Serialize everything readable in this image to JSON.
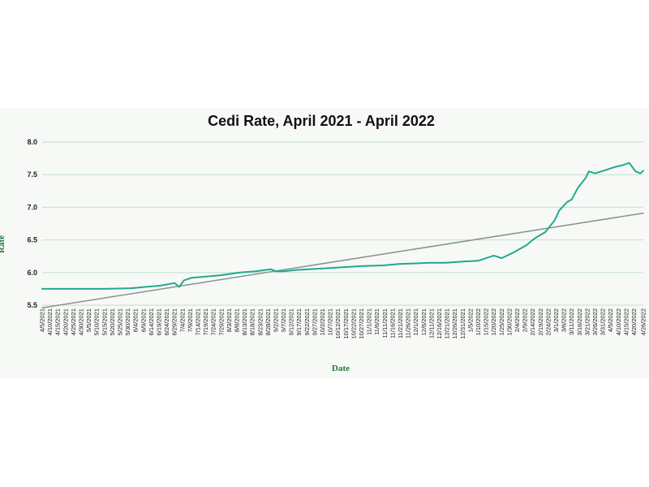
{
  "chart_data": {
    "type": "line",
    "title": "Cedi Rate, April 2021 - April 2022",
    "xlabel": "Date",
    "ylabel": "Rate",
    "ylim": [
      5.5,
      8.0
    ],
    "yticks": [
      "5.5",
      "6.0",
      "6.5",
      "7.0",
      "7.5",
      "8.0"
    ],
    "grid": true,
    "legend": "none",
    "colors": {
      "series": "#20a98f",
      "trend": "#8a938c",
      "grid": "#bfe0cf"
    },
    "x_tick_labels": [
      "4/5/2021",
      "4/10/2021",
      "4/15/2021",
      "4/20/2021",
      "4/25/2021",
      "4/30/2021",
      "5/5/2021",
      "5/10/2021",
      "5/15/2021",
      "5/20/2021",
      "5/25/2021",
      "5/30/2021",
      "6/4/2021",
      "6/9/2021",
      "6/14/2021",
      "6/19/2021",
      "6/24/2021",
      "6/29/2021",
      "7/4/2021",
      "7/9/2021",
      "7/14/2021",
      "7/19/2021",
      "7/24/2021",
      "7/29/2021",
      "8/3/2021",
      "8/8/2021",
      "8/13/2021",
      "8/18/2021",
      "8/23/2021",
      "8/28/2021",
      "9/2/2021",
      "9/7/2021",
      "9/12/2021",
      "9/17/2021",
      "9/22/2021",
      "9/27/2021",
      "10/2/2021",
      "10/7/2021",
      "10/12/2021",
      "10/17/2021",
      "10/22/2021",
      "10/27/2021",
      "11/1/2021",
      "11/6/2021",
      "11/11/2021",
      "11/16/2021",
      "11/21/2021",
      "11/26/2021",
      "12/1/2021",
      "12/6/2021",
      "12/11/2021",
      "12/16/2021",
      "12/21/2021",
      "12/26/2021",
      "12/31/2021",
      "1/5/2022",
      "1/10/2022",
      "1/15/2022",
      "1/20/2022",
      "1/25/2022",
      "1/30/2022",
      "2/4/2022",
      "2/9/2022",
      "2/14/2022",
      "2/19/2022",
      "2/24/2022",
      "3/1/2022",
      "3/6/2022",
      "3/11/2022",
      "3/16/2022",
      "3/21/2022",
      "3/26/2022",
      "3/31/2022",
      "4/5/2022",
      "4/10/2022",
      "4/15/2022",
      "4/20/2022",
      "4/26/2022"
    ],
    "series": [
      {
        "x": [
          "4/5/2021",
          "4/15/2021",
          "5/1/2021",
          "5/15/2021",
          "6/1/2021",
          "6/10/2021",
          "6/20/2021",
          "6/29/2021",
          "7/2/2021",
          "7/5/2021",
          "7/10/2021",
          "7/20/2021",
          "7/29/2021",
          "8/10/2021",
          "8/20/2021",
          "8/30/2021",
          "9/2/2021",
          "9/7/2021",
          "9/15/2021",
          "9/30/2021",
          "10/14/2021",
          "10/28/2021",
          "11/10/2021",
          "11/20/2021",
          "12/1/2021",
          "12/10/2021",
          "12/20/2021",
          "1/1/2022",
          "1/10/2022",
          "1/15/2022",
          "1/20/2022",
          "1/25/2022",
          "2/1/2022",
          "2/10/2022",
          "2/15/2022",
          "2/22/2022",
          "2/28/2022",
          "3/3/2022",
          "3/8/2022",
          "3/11/2022",
          "3/15/2022",
          "3/20/2022",
          "3/22/2022",
          "3/26/2022",
          "3/30/2022",
          "4/3/2022",
          "4/8/2022",
          "4/12/2022",
          "4/17/2022",
          "4/21/2022",
          "4/24/2022",
          "4/26/2022"
        ],
        "values": [
          5.75,
          5.75,
          5.75,
          5.75,
          5.76,
          5.78,
          5.8,
          5.84,
          5.78,
          5.88,
          5.92,
          5.94,
          5.96,
          6.0,
          6.02,
          6.05,
          6.02,
          6.02,
          6.04,
          6.06,
          6.08,
          6.1,
          6.11,
          6.13,
          6.14,
          6.15,
          6.15,
          6.17,
          6.18,
          6.22,
          6.26,
          6.22,
          6.3,
          6.42,
          6.52,
          6.62,
          6.8,
          6.95,
          7.08,
          7.12,
          7.3,
          7.45,
          7.55,
          7.52,
          7.55,
          7.58,
          7.62,
          7.64,
          7.68,
          7.55,
          7.52,
          7.56
        ]
      },
      {
        "x": [
          "4/5/2021",
          "4/26/2022"
        ],
        "values": [
          5.46,
          6.91
        ]
      }
    ]
  }
}
